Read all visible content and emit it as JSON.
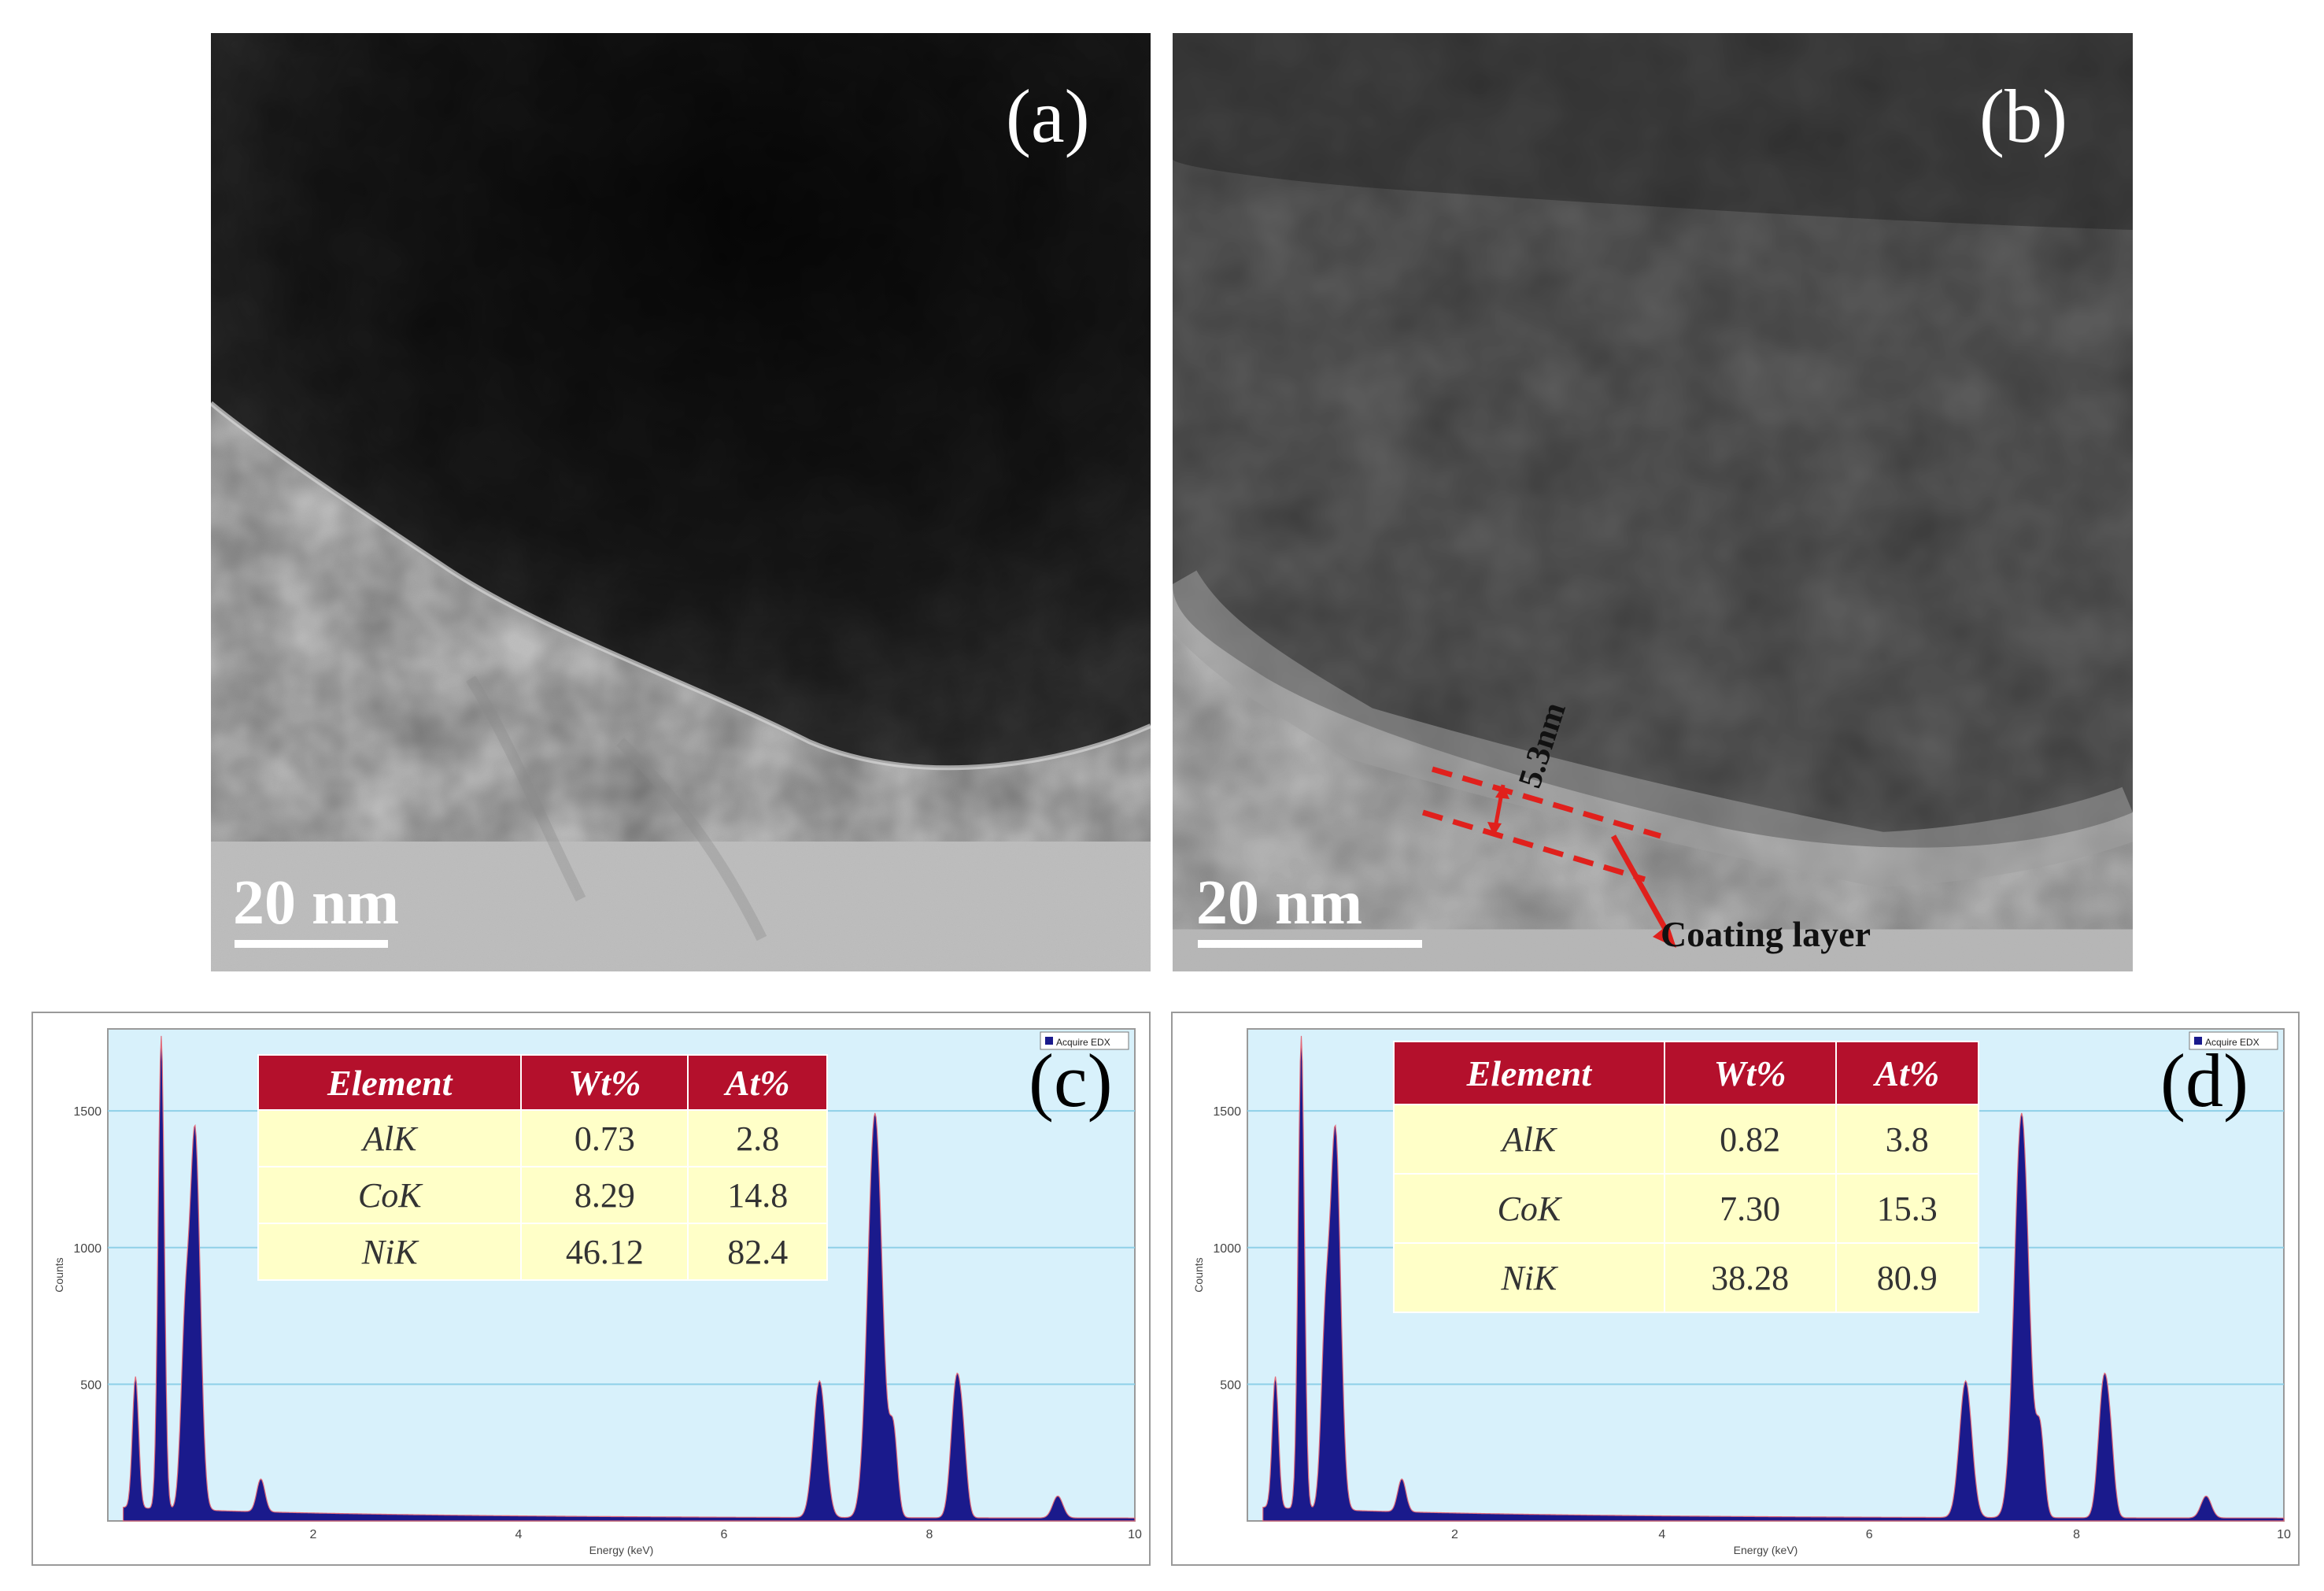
{
  "panels": {
    "a": {
      "label": "(a)",
      "scale_text": "20 nm"
    },
    "b": {
      "label": "(b)",
      "scale_text": "20 nm",
      "thickness_label": "5.3nm",
      "annotation": "Coating layer"
    },
    "c": {
      "label": "(c)",
      "legend": "Acquire EDX",
      "table": {
        "headers": [
          "Element",
          "Wt%",
          "At%"
        ],
        "rows": [
          [
            "AlK",
            "0.73",
            "2.8"
          ],
          [
            "CoK",
            "8.29",
            "14.8"
          ],
          [
            "NiK",
            "46.12",
            "82.4"
          ]
        ]
      },
      "axis": {
        "xlabel": "Energy (keV)",
        "ylabel": "Counts",
        "yticks": [
          "500",
          "1000",
          "1500"
        ],
        "xticks": [
          "2",
          "4",
          "6",
          "8",
          "10"
        ]
      }
    },
    "d": {
      "label": "(d)",
      "legend": "Acquire EDX",
      "table": {
        "headers": [
          "Element",
          "Wt%",
          "At%"
        ],
        "rows": [
          [
            "AlK",
            "0.82",
            "3.8"
          ],
          [
            "CoK",
            "7.30",
            "15.3"
          ],
          [
            "NiK",
            "38.28",
            "80.9"
          ]
        ]
      },
      "axis": {
        "xlabel": "Energy (keV)",
        "ylabel": "Counts",
        "yticks": [
          "500",
          "1000",
          "1500"
        ],
        "xticks": [
          "2",
          "4",
          "6",
          "8",
          "10"
        ]
      }
    }
  },
  "colors": {
    "table_header": "#b4102c",
    "table_body": "#ffffc8",
    "spectrum": "#1a1a8c",
    "plot_bg": "#d8f1fb",
    "annotation_red": "#e0201c"
  }
}
